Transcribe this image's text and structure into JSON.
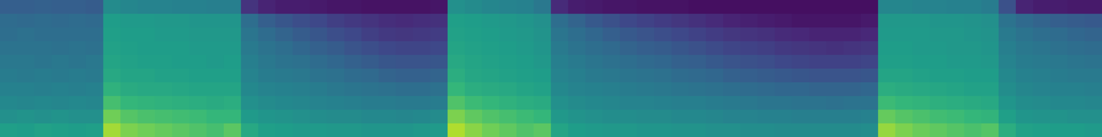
{
  "chart_data": {
    "type": "heatmap",
    "zlim": [
      0,
      100
    ],
    "tick_labels": false,
    "grid": false,
    "z": [
      [
        56,
        50,
        47,
        44,
        42,
        40,
        38,
        36,
        35,
        30
      ],
      [
        55,
        51,
        46,
        44,
        41,
        40,
        38,
        37,
        34,
        30
      ],
      [
        57,
        50,
        47,
        43,
        42,
        39,
        38,
        36,
        35,
        31
      ],
      [
        56,
        51,
        46,
        44,
        41,
        40,
        37,
        36,
        34,
        30
      ],
      [
        55,
        50,
        47,
        43,
        42,
        39,
        38,
        36,
        35,
        30
      ],
      [
        56,
        50,
        46,
        44,
        41,
        40,
        37,
        36,
        34,
        29
      ],
      [
        86,
        78,
        70,
        64,
        60,
        58,
        57,
        56,
        55,
        48
      ],
      [
        80,
        73,
        66,
        61,
        58,
        57,
        56,
        55,
        54,
        46
      ],
      [
        78,
        71,
        65,
        60,
        58,
        56,
        55,
        55,
        54,
        45
      ],
      [
        76,
        70,
        64,
        60,
        57,
        56,
        55,
        54,
        53,
        45
      ],
      [
        74,
        69,
        63,
        59,
        57,
        55,
        55,
        54,
        53,
        44
      ],
      [
        72,
        68,
        62,
        58,
        56,
        55,
        54,
        53,
        52,
        44
      ],
      [
        70,
        66,
        61,
        58,
        56,
        54,
        54,
        53,
        52,
        43
      ],
      [
        74,
        66,
        62,
        58,
        56,
        55,
        54,
        53,
        52,
        43
      ],
      [
        60,
        54,
        50,
        47,
        45,
        43,
        41,
        39,
        36,
        15
      ],
      [
        56,
        52,
        48,
        45,
        42,
        40,
        38,
        35,
        30,
        10
      ],
      [
        55,
        51,
        47,
        44,
        41,
        38,
        36,
        32,
        27,
        8
      ],
      [
        54,
        50,
        46,
        43,
        40,
        37,
        33,
        29,
        24,
        8
      ],
      [
        54,
        49,
        45,
        42,
        38,
        35,
        31,
        27,
        22,
        7
      ],
      [
        53,
        48,
        44,
        40,
        37,
        33,
        29,
        24,
        19,
        6
      ],
      [
        53,
        48,
        43,
        39,
        35,
        31,
        26,
        22,
        17,
        6
      ],
      [
        52,
        47,
        42,
        38,
        34,
        29,
        24,
        19,
        15,
        5
      ],
      [
        52,
        47,
        42,
        37,
        32,
        27,
        22,
        17,
        13,
        5
      ],
      [
        52,
        46,
        41,
        36,
        31,
        26,
        21,
        16,
        12,
        5
      ],
      [
        53,
        47,
        41,
        36,
        31,
        26,
        21,
        17,
        13,
        5
      ],
      [
        54,
        48,
        42,
        37,
        32,
        27,
        22,
        18,
        14,
        6
      ],
      [
        88,
        80,
        72,
        66,
        62,
        60,
        58,
        57,
        56,
        50
      ],
      [
        82,
        75,
        68,
        62,
        59,
        58,
        57,
        56,
        55,
        48
      ],
      [
        78,
        72,
        66,
        61,
        58,
        57,
        56,
        55,
        54,
        46
      ],
      [
        75,
        70,
        64,
        60,
        57,
        56,
        55,
        54,
        53,
        45
      ],
      [
        72,
        68,
        62,
        58,
        56,
        55,
        54,
        53,
        52,
        44
      ],
      [
        74,
        66,
        61,
        57,
        55,
        53,
        52,
        51,
        50,
        40
      ],
      [
        58,
        53,
        50,
        47,
        45,
        43,
        41,
        39,
        36,
        12
      ],
      [
        55,
        51,
        48,
        45,
        43,
        41,
        38,
        36,
        32,
        8
      ],
      [
        54,
        50,
        47,
        44,
        41,
        39,
        36,
        33,
        28,
        7
      ],
      [
        53,
        49,
        46,
        43,
        40,
        37,
        34,
        30,
        25,
        6
      ],
      [
        53,
        49,
        45,
        42,
        39,
        36,
        32,
        28,
        22,
        6
      ],
      [
        52,
        48,
        45,
        41,
        38,
        34,
        30,
        26,
        20,
        5
      ],
      [
        52,
        48,
        44,
        40,
        37,
        33,
        29,
        24,
        18,
        5
      ],
      [
        51,
        47,
        43,
        39,
        35,
        31,
        27,
        22,
        16,
        5
      ],
      [
        51,
        47,
        43,
        38,
        34,
        30,
        25,
        20,
        14,
        4
      ],
      [
        50,
        46,
        42,
        37,
        33,
        28,
        23,
        18,
        12,
        4
      ],
      [
        50,
        45,
        41,
        36,
        31,
        26,
        21,
        16,
        10,
        4
      ],
      [
        49,
        45,
        40,
        35,
        30,
        25,
        20,
        15,
        9,
        4
      ],
      [
        49,
        44,
        39,
        34,
        29,
        24,
        19,
        14,
        8,
        4
      ],
      [
        48,
        44,
        39,
        33,
        28,
        22,
        17,
        12,
        7,
        4
      ],
      [
        48,
        43,
        38,
        33,
        27,
        21,
        16,
        11,
        6,
        4
      ],
      [
        48,
        43,
        38,
        32,
        26,
        20,
        15,
        10,
        6,
        4
      ],
      [
        48,
        43,
        37,
        32,
        26,
        20,
        14,
        10,
        6,
        4
      ],
      [
        48,
        43,
        38,
        32,
        26,
        20,
        15,
        10,
        6,
        4
      ],
      [
        49,
        44,
        38,
        33,
        27,
        21,
        16,
        11,
        7,
        4
      ],
      [
        84,
        76,
        68,
        62,
        58,
        56,
        55,
        54,
        53,
        46
      ],
      [
        80,
        73,
        66,
        61,
        58,
        56,
        55,
        54,
        53,
        46
      ],
      [
        77,
        71,
        65,
        60,
        57,
        55,
        54,
        54,
        53,
        45
      ],
      [
        75,
        69,
        63,
        59,
        56,
        55,
        54,
        53,
        52,
        45
      ],
      [
        73,
        68,
        62,
        58,
        56,
        54,
        53,
        53,
        52,
        44
      ],
      [
        71,
        66,
        61,
        57,
        55,
        54,
        53,
        52,
        51,
        44
      ],
      [
        73,
        65,
        60,
        57,
        55,
        53,
        52,
        51,
        50,
        42
      ],
      [
        62,
        56,
        52,
        49,
        47,
        45,
        43,
        41,
        38,
        25
      ],
      [
        57,
        52,
        49,
        46,
        44,
        42,
        40,
        38,
        34,
        10
      ],
      [
        56,
        51,
        48,
        45,
        43,
        41,
        39,
        36,
        32,
        8
      ],
      [
        55,
        51,
        47,
        44,
        42,
        40,
        37,
        35,
        30,
        8
      ],
      [
        55,
        50,
        47,
        44,
        41,
        39,
        36,
        33,
        29,
        7
      ],
      [
        54,
        50,
        46,
        43,
        41,
        38,
        35,
        32,
        28,
        7
      ]
    ]
  }
}
